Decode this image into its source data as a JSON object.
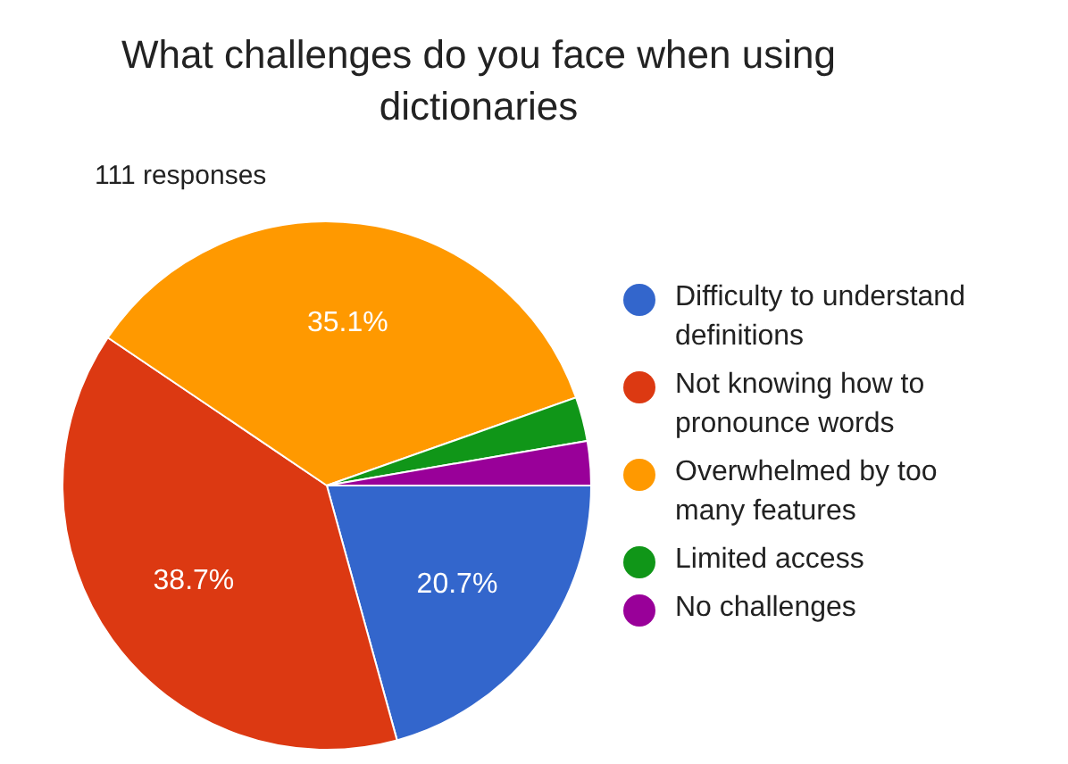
{
  "chart_data": {
    "type": "pie",
    "title": "What challenges do you face when using dictionaries",
    "subtitle": "111 responses",
    "categories": [
      "Difficulty to understand definitions",
      "Not knowing how to pronounce words",
      "Overwhelmed by too many features",
      "Limited access",
      "No challenges"
    ],
    "values": [
      20.7,
      38.7,
      35.1,
      2.7,
      2.7
    ],
    "colors": [
      "#3366cc",
      "#dc3912",
      "#ff9900",
      "#109618",
      "#990099"
    ],
    "value_labels": [
      "20.7%",
      "38.7%",
      "35.1%",
      null,
      null
    ],
    "legend": "right"
  }
}
